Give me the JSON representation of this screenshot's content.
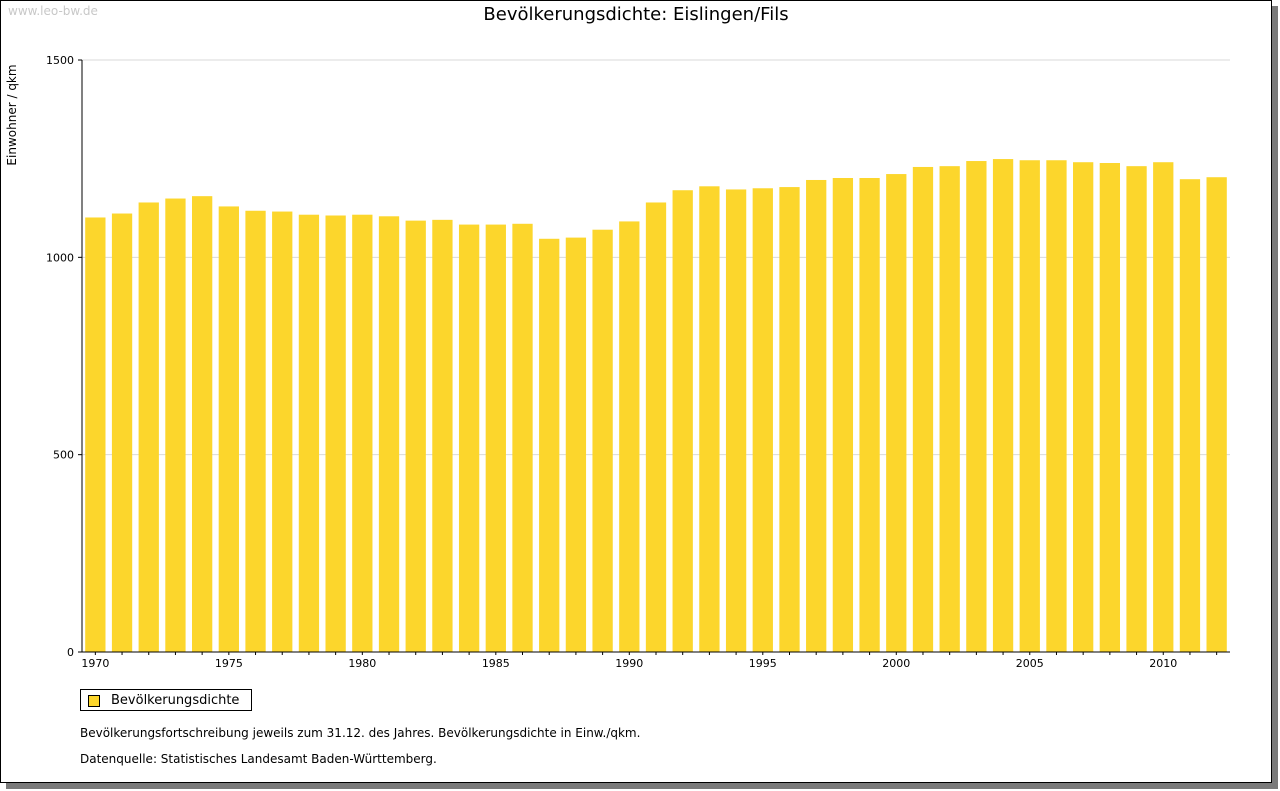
{
  "watermark": "www.leo-bw.de",
  "colors": {
    "bar": "#fcd62c",
    "grid": "#d9d9d9",
    "axis": "#000000"
  },
  "chart_data": {
    "type": "bar",
    "title": "Bevölkerungsdichte: Eislingen/Fils",
    "ylabel": "Einwohner / qkm",
    "xlabel": "",
    "ylim": [
      0,
      1500
    ],
    "yticks": [
      0,
      500,
      1000,
      1500
    ],
    "xtick_labels": [
      "1970",
      "1975",
      "1980",
      "1985",
      "1990",
      "1995",
      "2000",
      "2005",
      "2010"
    ],
    "grid": true,
    "legend_position": "bottom-left",
    "series": [
      {
        "name": "Bevölkerungsdichte",
        "color": "#fcd62c",
        "x": [
          1970,
          1971,
          1972,
          1973,
          1974,
          1975,
          1976,
          1977,
          1978,
          1979,
          1980,
          1981,
          1982,
          1983,
          1984,
          1985,
          1986,
          1987,
          1988,
          1989,
          1990,
          1991,
          1992,
          1993,
          1994,
          1995,
          1996,
          1997,
          1998,
          1999,
          2000,
          2001,
          2002,
          2003,
          2004,
          2005,
          2006,
          2007,
          2008,
          2009,
          2010,
          2011,
          2012
        ],
        "values": [
          1101,
          1111,
          1139,
          1149,
          1155,
          1129,
          1118,
          1116,
          1108,
          1106,
          1108,
          1104,
          1093,
          1095,
          1083,
          1083,
          1085,
          1047,
          1050,
          1070,
          1091,
          1139,
          1170,
          1180,
          1172,
          1175,
          1178,
          1196,
          1201,
          1201,
          1211,
          1229,
          1231,
          1244,
          1249,
          1246,
          1246,
          1241,
          1239,
          1231,
          1241,
          1198,
          1203
        ]
      }
    ]
  },
  "notes": {
    "line1": "Bevölkerungsfortschreibung jeweils zum 31.12. des Jahres. Bevölkerungsdichte in Einw./qkm.",
    "line2": "Datenquelle: Statistisches Landesamt Baden-Württemberg."
  }
}
